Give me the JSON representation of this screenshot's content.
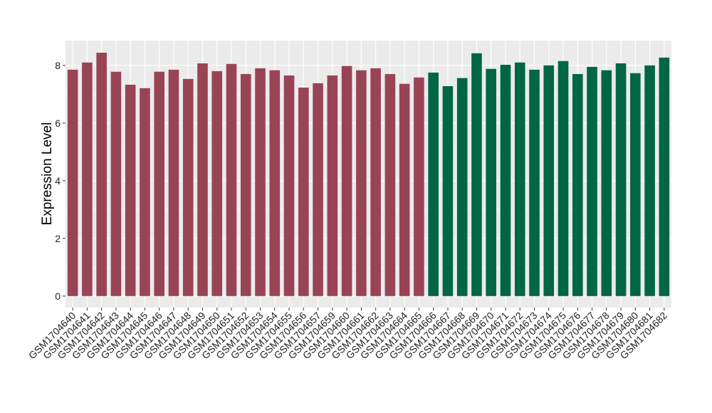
{
  "chart_data": {
    "type": "bar",
    "y_label": "Expression Level",
    "categories": [
      "GSM1704640",
      "GSM1704641",
      "GSM1704642",
      "GSM1704643",
      "GSM1704644",
      "GSM1704645",
      "GSM1704646",
      "GSM1704647",
      "GSM1704648",
      "GSM1704649",
      "GSM1704650",
      "GSM1704651",
      "GSM1704652",
      "GSM1704653",
      "GSM1704654",
      "GSM1704655",
      "GSM1704656",
      "GSM1704657",
      "GSM1704659",
      "GSM1704660",
      "GSM1704661",
      "GSM1704662",
      "GSM1704663",
      "GSM1704664",
      "GSM1704665",
      "GSM1704666",
      "GSM1704667",
      "GSM1704668",
      "GSM1704669",
      "GSM1704670",
      "GSM1704671",
      "GSM1704672",
      "GSM1704673",
      "GSM1704674",
      "GSM1704675",
      "GSM1704676",
      "GSM1704677",
      "GSM1704678",
      "GSM1704679",
      "GSM1704680",
      "GSM1704681",
      "GSM1704682"
    ],
    "values": [
      7.85,
      8.1,
      8.44,
      7.78,
      7.33,
      7.21,
      7.78,
      7.85,
      7.53,
      8.07,
      7.8,
      8.05,
      7.7,
      7.9,
      7.83,
      7.65,
      7.23,
      7.38,
      7.65,
      7.98,
      7.83,
      7.9,
      7.7,
      7.36,
      7.58,
      7.75,
      7.28,
      7.56,
      8.42,
      7.88,
      8.02,
      8.1,
      7.85,
      8.0,
      8.15,
      7.7,
      7.95,
      7.83,
      8.07,
      7.73,
      8.0,
      8.27
    ],
    "bar_colors": [
      "#994455",
      "#994455",
      "#994455",
      "#994455",
      "#994455",
      "#994455",
      "#994455",
      "#994455",
      "#994455",
      "#994455",
      "#994455",
      "#994455",
      "#994455",
      "#994455",
      "#994455",
      "#994455",
      "#994455",
      "#994455",
      "#994455",
      "#994455",
      "#994455",
      "#994455",
      "#994455",
      "#994455",
      "#994455",
      "#006644",
      "#006644",
      "#006644",
      "#006644",
      "#006644",
      "#006644",
      "#006644",
      "#006644",
      "#006644",
      "#006644",
      "#006644",
      "#006644",
      "#006644",
      "#006644",
      "#006644",
      "#006644",
      "#006644"
    ],
    "ylim": [
      -0.4,
      8.86
    ],
    "yticks": [
      0,
      2,
      4,
      6,
      8
    ],
    "grid": true
  }
}
